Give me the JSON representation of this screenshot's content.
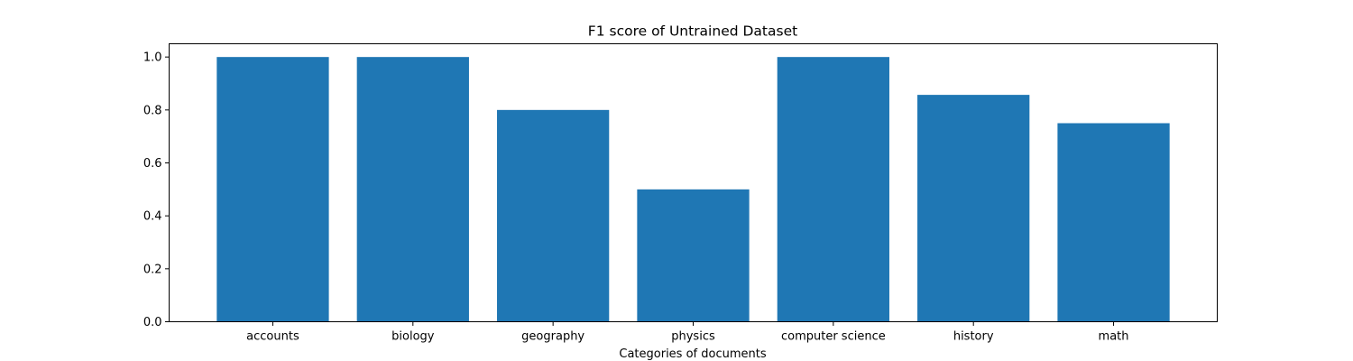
{
  "chart_data": {
    "type": "bar",
    "title": "F1 score of Untrained Dataset",
    "xlabel": "Categories of documents",
    "ylabel": "",
    "categories": [
      "accounts",
      "biology",
      "geography",
      "physics",
      "computer science",
      "history",
      "math"
    ],
    "values": [
      1.0,
      1.0,
      0.8,
      0.5,
      1.0,
      0.857,
      0.75
    ],
    "ylim": [
      0,
      1.05
    ],
    "yticks": [
      0.0,
      0.2,
      0.4,
      0.6,
      0.8,
      1.0
    ],
    "ytick_labels": [
      "0.0",
      "0.2",
      "0.4",
      "0.6",
      "0.8",
      "1.0"
    ],
    "bar_color": "#1f77b4",
    "grid": false,
    "legend": "none"
  }
}
